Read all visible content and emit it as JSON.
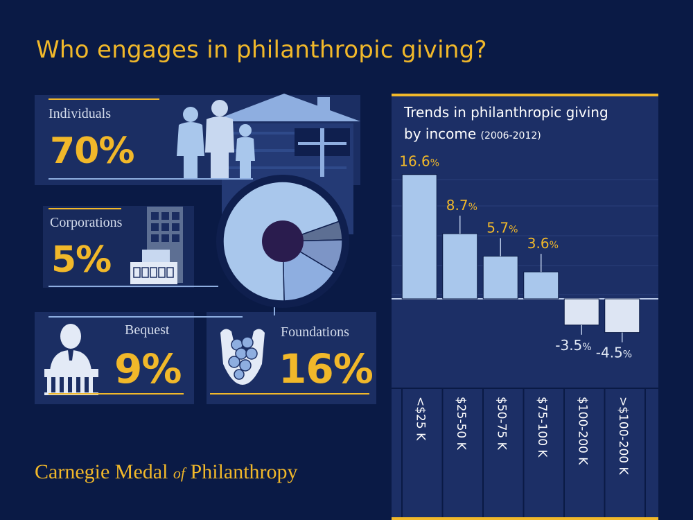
{
  "title": "Who engages in philanthropic giving?",
  "footer": {
    "part1": "Carnegie Medal ",
    "of": "of",
    "part2": " Philanthropy"
  },
  "breakdown": [
    {
      "label": "Individuals",
      "percent": "70%",
      "value": 70
    },
    {
      "label": "Corporations",
      "percent": "5%",
      "value": 5
    },
    {
      "label": "Bequest",
      "percent": "9%",
      "value": 9
    },
    {
      "label": "Foundations",
      "percent": "16%",
      "value": 16
    }
  ],
  "colors": {
    "background": "#0a1a45",
    "accent": "#f1b82a",
    "bar": "#a9c7ec",
    "negative_bar": "#dde5f3"
  },
  "chart_data": {
    "type": "bar",
    "title": "Trends in philanthropic giving by income",
    "title_line1": "Trends in philanthropic giving",
    "title_line2": "by income",
    "subtitle": "(2006-2012)",
    "categories": [
      "<$25 K",
      "$25-50 K",
      "$50-75 K",
      "$75-100 K",
      "$100-200 K",
      ">$100-200 K"
    ],
    "values": [
      16.6,
      8.7,
      5.7,
      3.6,
      -3.5,
      -4.5
    ],
    "labels": [
      "16.6",
      "8.7",
      "5.7",
      "3.6",
      "-3.5",
      "-4.5"
    ],
    "unit": "%",
    "xlabel": "",
    "ylabel": "",
    "ylim": [
      -8,
      20
    ],
    "grid": true,
    "legend": "none"
  }
}
